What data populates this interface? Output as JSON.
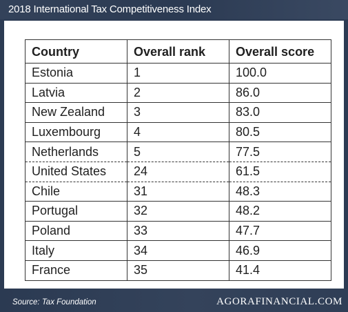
{
  "header": {
    "title": "2018 International Tax Competitiveness Index"
  },
  "footer": {
    "source": "Source: Tax Foundation",
    "brand": "AGORAFINANCIAL.COM"
  },
  "chart_data": {
    "type": "table",
    "columns": [
      "Country",
      "Overall rank",
      "Overall score"
    ],
    "rows": [
      {
        "country": "Estonia",
        "rank": "1",
        "score": "100.0"
      },
      {
        "country": "Latvia",
        "rank": "2",
        "score": "86.0"
      },
      {
        "country": "New Zealand",
        "rank": "3",
        "score": "83.0"
      },
      {
        "country": "Luxembourg",
        "rank": "4",
        "score": "80.5"
      },
      {
        "country": "Netherlands",
        "rank": "5",
        "score": "77.5"
      },
      {
        "country": "United States",
        "rank": "24",
        "score": "61.5"
      },
      {
        "country": "Chile",
        "rank": "31",
        "score": "48.3"
      },
      {
        "country": "Portugal",
        "rank": "32",
        "score": "48.2"
      },
      {
        "country": "Poland",
        "rank": "33",
        "score": "47.7"
      },
      {
        "country": "Italy",
        "rank": "34",
        "score": "46.9"
      },
      {
        "country": "France",
        "rank": "35",
        "score": "41.4"
      }
    ],
    "highlighted_row": "United States"
  }
}
